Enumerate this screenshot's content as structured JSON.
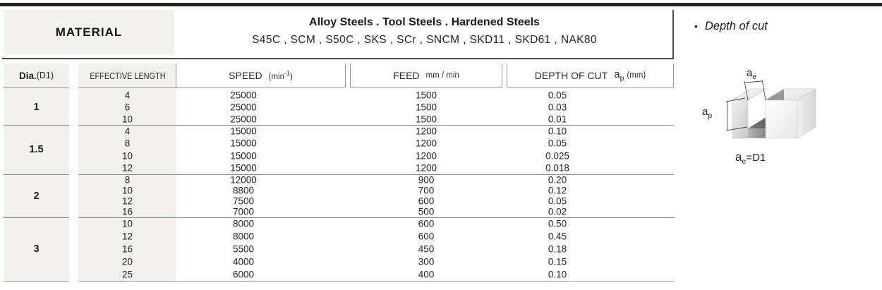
{
  "material_header": {
    "label": "MATERIAL",
    "line1": "Alloy  Steels . Tool Steels . Hardened Steels",
    "line2": "S45C , SCM , S50C , SKS , SCr , SNCM , SKD11 , SKD61 , NAK80"
  },
  "columns": {
    "dia_bold": "Dia.",
    "dia_paren": "(D1)",
    "effective_length": "EFFECTIVE LENGTH",
    "speed": "SPEED",
    "speed_unit_open": "(min",
    "speed_unit_sup": "-1",
    "speed_unit_close": ")",
    "feed": "FEED",
    "feed_unit": "mm / min",
    "depth": "DEPTH OF CUT",
    "depth_a": "a",
    "depth_sub": "p",
    "depth_unit": "(mm)"
  },
  "table": {
    "groups": [
      {
        "dia": "1",
        "rows": [
          [
            "4",
            "25000",
            "1500",
            "0.05"
          ],
          [
            "6",
            "25000",
            "1500",
            "0.03"
          ],
          [
            "10",
            "25000",
            "1500",
            "0.01"
          ]
        ]
      },
      {
        "dia": "1.5",
        "rows": [
          [
            "4",
            "15000",
            "1200",
            "0.10"
          ],
          [
            "8",
            "15000",
            "1200",
            "0.05"
          ],
          [
            "10",
            "15000",
            "1200",
            "0.025"
          ],
          [
            "12",
            "15000",
            "1200",
            "0.018"
          ]
        ]
      },
      {
        "dia": "2",
        "rows": [
          [
            "8",
            "12000",
            "900",
            "0.20"
          ],
          [
            "10",
            "8800",
            "700",
            "0.12"
          ],
          [
            "12",
            "7500",
            "600",
            "0.05"
          ],
          [
            "16",
            "7000",
            "500",
            "0.02"
          ]
        ]
      },
      {
        "dia": "3",
        "rows": [
          [
            "10",
            "8000",
            "600",
            "0.50"
          ],
          [
            "12",
            "8000",
            "600",
            "0.45"
          ],
          [
            "16",
            "5500",
            "450",
            "0.18"
          ],
          [
            "20",
            "4000",
            "300",
            "0.15"
          ],
          [
            "25",
            "6000",
            "400",
            "0.10"
          ]
        ]
      }
    ]
  },
  "side_panel": {
    "bullet": "•",
    "title": "Depth of cut",
    "ae_a": "a",
    "ae_sub": "e",
    "ap_a": "a",
    "ap_sub": "p",
    "formula_a": "a",
    "formula_sub": "e",
    "formula_rest": "=D1"
  },
  "colors": {
    "accent_bar": "#2a2320",
    "cell_gray": "#f2f1ee"
  }
}
